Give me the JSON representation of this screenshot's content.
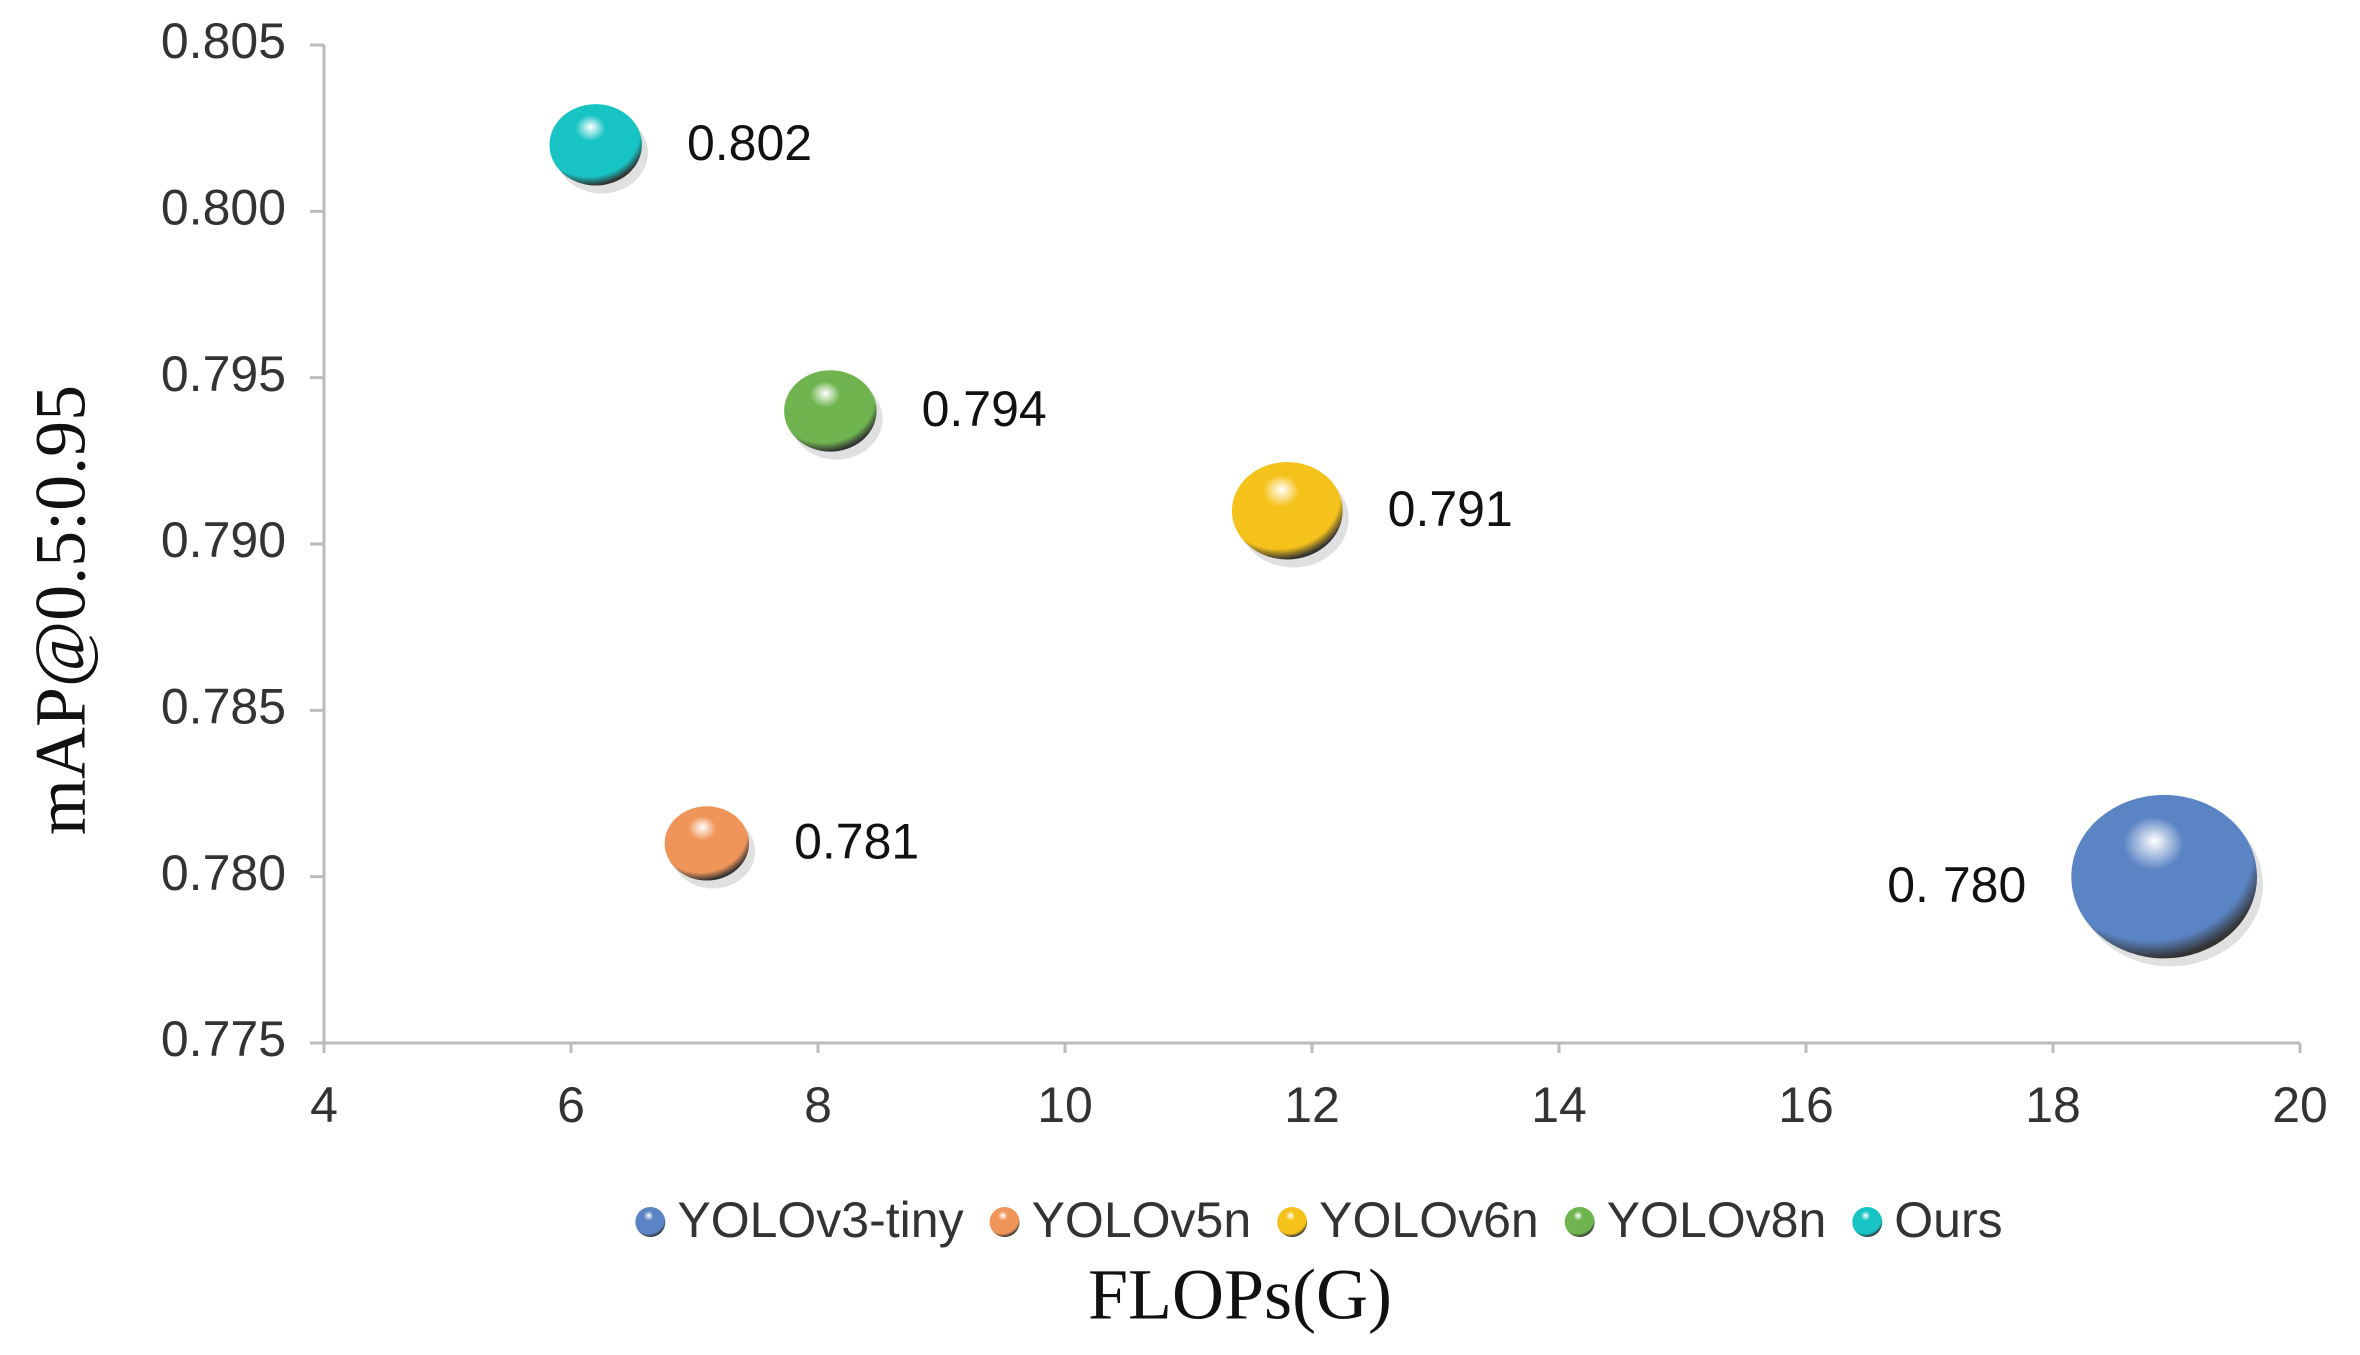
{
  "chart_data": {
    "type": "bubble",
    "x_label": "FLOPs(G)",
    "y_label": "mAP@0.5:0.95",
    "xlim": [
      4,
      20
    ],
    "xticks": [
      4,
      6,
      8,
      10,
      12,
      14,
      16,
      18,
      20
    ],
    "ylim": [
      0.775,
      0.805
    ],
    "yticks": [
      0.775,
      {
        "value": 0.78,
        "label": "0.780"
      },
      0.785,
      {
        "value": 0.79,
        "label": "0.790"
      },
      0.795,
      {
        "value": 0.8,
        "label": "0.800"
      },
      0.805
    ],
    "grid": false,
    "legend": "bottom",
    "series": [
      {
        "name": "YOLOv3-tiny",
        "color": "#5b84c4",
        "x": [
          18.9
        ],
        "values": [
          0.78
        ],
        "sizes": [
          12.1
        ],
        "value_labels": [
          "0. 780"
        ]
      },
      {
        "name": "YOLOv5n",
        "color": "#f0955a",
        "x": [
          7.1
        ],
        "values": [
          0.781
        ],
        "sizes": [
          2.5
        ]
      },
      {
        "name": "YOLOv6n",
        "color": "#f5c21b",
        "x": [
          11.8
        ],
        "values": [
          0.791
        ],
        "sizes": [
          4.3
        ]
      },
      {
        "name": "YOLOv8n",
        "color": "#6fb44f",
        "x": [
          8.1
        ],
        "values": [
          0.794
        ],
        "sizes": [
          3.0
        ]
      },
      {
        "name": "Ours",
        "color": "#17c3c3",
        "x": [
          6.2
        ],
        "values": [
          0.802
        ],
        "sizes": [
          3.0
        ]
      }
    ]
  }
}
